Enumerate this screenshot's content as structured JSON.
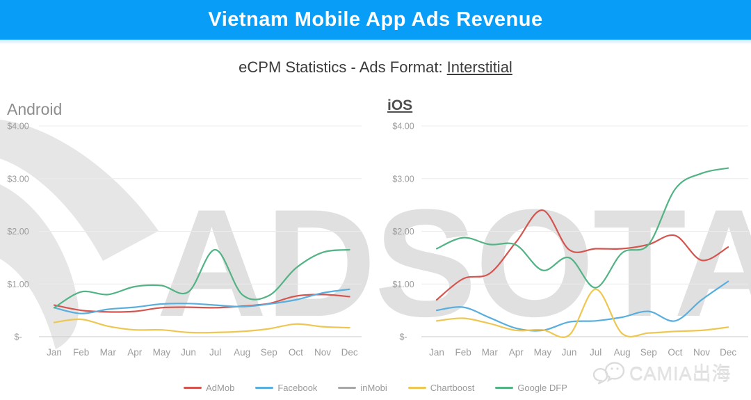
{
  "header": {
    "title": "Vietnam Mobile App Ads Revenue",
    "background_color": "#089ef8"
  },
  "subtitle": {
    "prefix": "eCPM Statistics - Ads Format: ",
    "emphasis": "Interstitial"
  },
  "watermark": {
    "brand_text": "ADSOTA",
    "footer_logo_text": "CAMIA出海"
  },
  "legend": [
    {
      "label": "AdMob",
      "color": "#d4554f"
    },
    {
      "label": "Facebook",
      "color": "#58aedd"
    },
    {
      "label": "inMobi",
      "color": "#a8a8a8"
    },
    {
      "label": "Chartboost",
      "color": "#edc751"
    },
    {
      "label": "Google DFP",
      "color": "#52b385"
    }
  ],
  "chart_data": [
    {
      "type": "line",
      "title": "Android",
      "categories": [
        "Jan",
        "Feb",
        "Mar",
        "Apr",
        "May",
        "Jun",
        "Jul",
        "Aug",
        "Sep",
        "Oct",
        "Nov",
        "Dec"
      ],
      "y_ticks": [
        "$4.00",
        "$3.00",
        "$2.00",
        "$1.00",
        "$-"
      ],
      "ylim": [
        0,
        4
      ],
      "grid": true,
      "legend_position": "bottom",
      "series": [
        {
          "name": "AdMob",
          "color": "#d4554f",
          "values": [
            0.6,
            0.5,
            0.47,
            0.48,
            0.55,
            0.56,
            0.55,
            0.58,
            0.63,
            0.77,
            0.8,
            0.76
          ]
        },
        {
          "name": "Facebook",
          "color": "#58aedd",
          "values": [
            0.55,
            0.44,
            0.52,
            0.56,
            0.62,
            0.63,
            0.6,
            0.57,
            0.62,
            0.7,
            0.83,
            0.9
          ]
        },
        {
          "name": "inMobi",
          "color": "#a8a8a8",
          "values": null
        },
        {
          "name": "Chartboost",
          "color": "#edc751",
          "values": [
            0.27,
            0.33,
            0.2,
            0.13,
            0.13,
            0.08,
            0.08,
            0.1,
            0.15,
            0.24,
            0.19,
            0.17
          ]
        },
        {
          "name": "Google DFP",
          "color": "#52b385",
          "values": [
            0.55,
            0.85,
            0.8,
            0.95,
            0.97,
            0.85,
            1.65,
            0.8,
            0.78,
            1.3,
            1.6,
            1.65
          ]
        }
      ]
    },
    {
      "type": "line",
      "title": "iOS",
      "categories": [
        "Jan",
        "Feb",
        "Mar",
        "Apr",
        "May",
        "Jun",
        "Jul",
        "Aug",
        "Sep",
        "Oct",
        "Nov",
        "Dec"
      ],
      "y_ticks": [
        "$4.00",
        "$3.00",
        "$2.00",
        "$1.00",
        "$-"
      ],
      "ylim": [
        0,
        4
      ],
      "grid": true,
      "legend_position": "bottom",
      "series": [
        {
          "name": "AdMob",
          "color": "#d4554f",
          "values": [
            0.7,
            1.1,
            1.2,
            1.8,
            2.4,
            1.65,
            1.67,
            1.67,
            1.75,
            1.92,
            1.45,
            1.7
          ]
        },
        {
          "name": "Facebook",
          "color": "#58aedd",
          "values": [
            0.5,
            0.56,
            0.36,
            0.16,
            0.12,
            0.28,
            0.3,
            0.37,
            0.48,
            0.3,
            0.7,
            1.05
          ]
        },
        {
          "name": "inMobi",
          "color": "#a8a8a8",
          "values": null
        },
        {
          "name": "Chartboost",
          "color": "#edc751",
          "values": [
            0.3,
            0.35,
            0.25,
            0.12,
            0.13,
            0.03,
            0.9,
            0.06,
            0.07,
            0.1,
            0.12,
            0.18
          ]
        },
        {
          "name": "Google DFP",
          "color": "#52b385",
          "values": [
            1.67,
            1.88,
            1.75,
            1.74,
            1.26,
            1.5,
            0.93,
            1.59,
            1.75,
            2.8,
            3.1,
            3.2
          ]
        }
      ]
    }
  ]
}
